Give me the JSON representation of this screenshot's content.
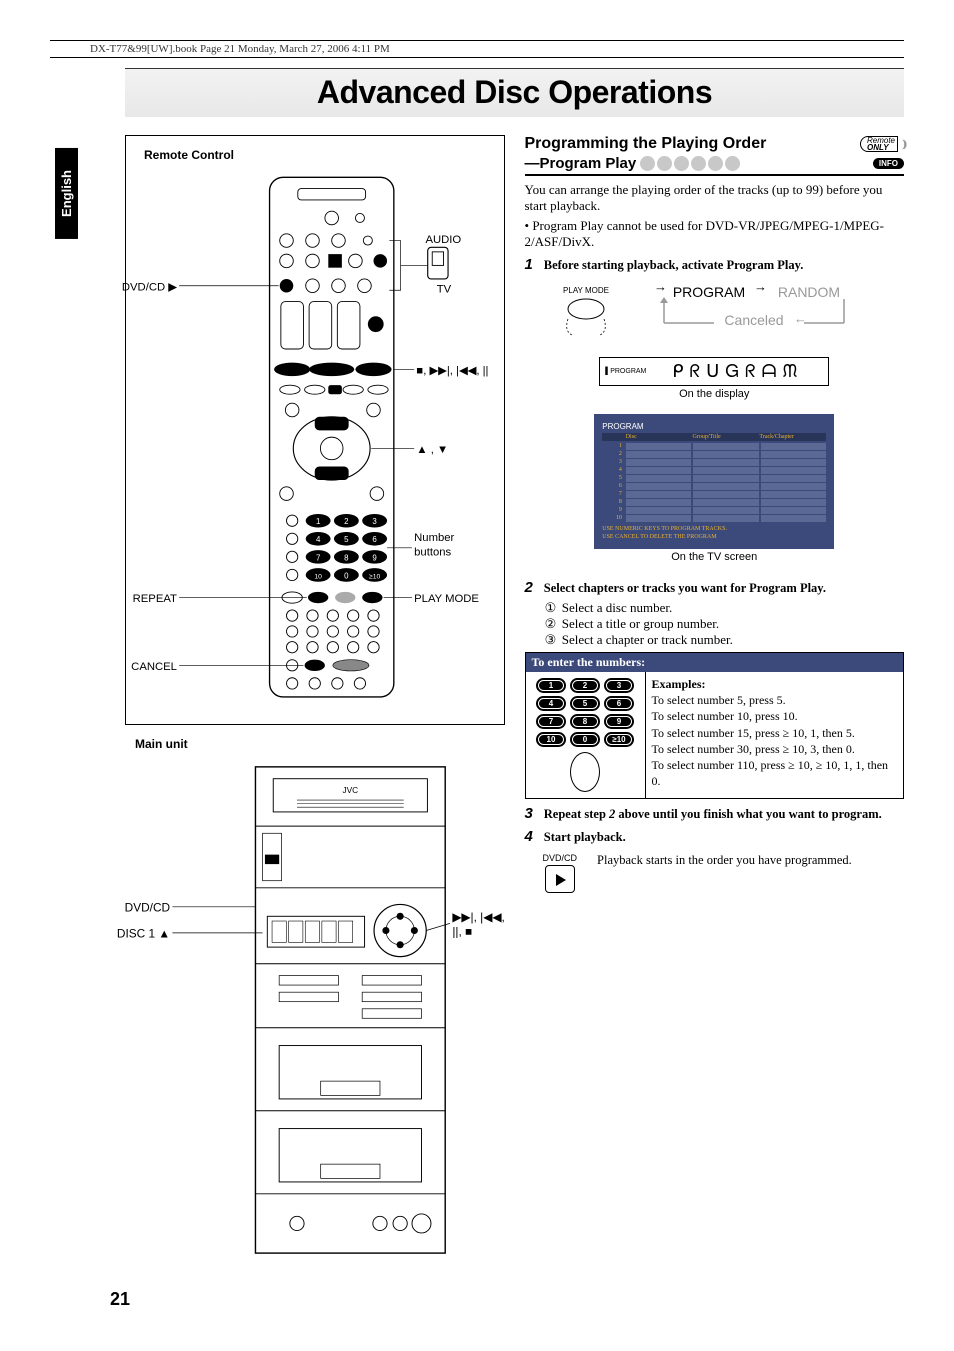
{
  "header_path": "DX-T77&99[UW].book  Page 21  Monday, March 27, 2006  4:11 PM",
  "language": "English",
  "title": "Advanced Disc Operations",
  "page_number": "21",
  "left": {
    "remote_title": "Remote Control",
    "main_unit_title": "Main unit",
    "labels": {
      "dvdcd": "DVD/CD ▶",
      "repeat": "REPEAT",
      "cancel": "CANCEL",
      "audio": "AUDIO",
      "tv": "TV",
      "transport": "■, ▶▶|, |◀◀, ||",
      "arrows": "▲ , ▼",
      "number_buttons": "Number\nbuttons",
      "playmode": "PLAY MODE",
      "main_dvdcd": "DVD/CD",
      "disc1": "DISC 1 ▲",
      "main_transport": "▶▶|, |◀◀,\n||, ■"
    }
  },
  "right": {
    "section_title": "Programming the Playing Order",
    "remote_only": "Remote",
    "remote_only2": "ONLY",
    "subsection": "—Program Play",
    "info_badge": "INFO",
    "intro": "You can arrange the playing order of the tracks (up to 99) before you start playback.",
    "note": "Program Play cannot be used for DVD-VR/JPEG/MPEG-1/MPEG-2/ASF/DivX.",
    "step1": "Before starting playback, activate Program Play.",
    "playmode_label": "PLAY MODE",
    "program": "PROGRAM",
    "random": "RANDOM",
    "canceled": "Canceled",
    "seg_display": "PROGRAM",
    "on_display": "On the display",
    "tv_title": "PROGRAM",
    "tv_headers": [
      "",
      "Disc",
      "Group/Title",
      "Track/Chapter"
    ],
    "tv_rows": [
      "1",
      "2",
      "3",
      "4",
      "5",
      "6",
      "7",
      "8",
      "9",
      "10"
    ],
    "tv_footer1": "USE NUMERIC KEYS TO PROGRAM TRACKS.",
    "tv_footer2": "USE CANCEL TO DELETE THE PROGRAM",
    "on_tv": "On the TV screen",
    "step2": "Select chapters or tracks you want for Program Play.",
    "step2_a": "Select a disc number.",
    "step2_b": "Select a title or group number.",
    "step2_c": "Select a chapter or track number.",
    "enter_title": "To enter the numbers:",
    "keys": [
      "1",
      "2",
      "3",
      "4",
      "5",
      "6",
      "7",
      "8",
      "9",
      "10",
      "0",
      "≥10"
    ],
    "examples_title": "Examples:",
    "ex1": "To select number 5, press 5.",
    "ex2": "To select number 10, press 10.",
    "ex3": "To select number 15, press ≥ 10, 1, then 5.",
    "ex4": "To select number 30, press ≥ 10, 3, then 0.",
    "ex5": "To select number 110, press ≥ 10, ≥ 10, 1, 1, then 0.",
    "step3": "Repeat step 2 above until you finish what you want to program.",
    "step4": "Start playback.",
    "play_label": "DVD/CD",
    "play_result": "Playback starts in the order you have programmed."
  },
  "colors": {
    "tv_bg": "#3b4a7a",
    "dot": "#c8c8c8",
    "titlebg": "#ededed"
  }
}
